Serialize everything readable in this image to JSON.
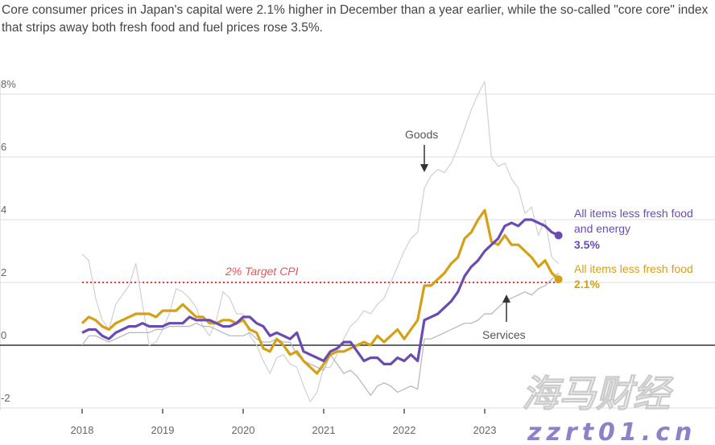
{
  "chart_data": {
    "type": "line",
    "title": "",
    "subtitle": "Core consumer prices in Japan's capital were 2.1% higher in December than a year earlier, while the so-called \"core core\" index that strips away both fresh food and fuel prices rose 3.5%.",
    "xlabel": "",
    "ylabel": "",
    "ylim": [
      -2,
      8
    ],
    "yticks": [
      "8%",
      "6",
      "4",
      "2",
      "0",
      "-2"
    ],
    "xticks": [
      "2018",
      "2019",
      "2020",
      "2021",
      "2022",
      "2023"
    ],
    "x_start": "2018-01",
    "x_end": "2023-12",
    "frequency": "monthly",
    "grid": true,
    "reference_line": {
      "value": 2,
      "label": "2% Target CPI",
      "color": "#e8383d"
    },
    "series": [
      {
        "name": "Goods",
        "color": "#d0d0d0",
        "values": [
          2.9,
          2.7,
          1.5,
          0.8,
          0.5,
          1.3,
          1.6,
          1.9,
          2.6,
          1.3,
          0.0,
          0.1,
          0.5,
          1.0,
          1.8,
          1.7,
          1.5,
          1.2,
          0.6,
          0.3,
          0.8,
          1.7,
          1.5,
          1.0,
          1.0,
          0.3,
          0.0,
          -0.5,
          -0.9,
          -0.4,
          -0.3,
          -0.6,
          -0.7,
          -1.3,
          -1.8,
          -1.5,
          -0.7,
          -0.7,
          -0.3,
          0.2,
          0.6,
          0.8,
          1.1,
          1.0,
          1.3,
          1.5,
          2.0,
          2.5,
          3.0,
          3.4,
          3.6,
          5.0,
          5.4,
          5.6,
          5.5,
          5.8,
          6.3,
          6.9,
          7.5,
          8.0,
          8.4,
          6.0,
          5.7,
          5.8,
          5.3,
          5.0,
          4.2,
          4.4,
          3.5,
          4.0,
          2.8,
          2.6
        ]
      },
      {
        "name": "Services",
        "color": "#b5b5b5",
        "values": [
          0.0,
          0.3,
          0.3,
          0.2,
          0.1,
          0.2,
          0.3,
          0.4,
          0.4,
          0.4,
          0.4,
          0.5,
          0.5,
          0.6,
          0.6,
          0.6,
          0.6,
          0.7,
          0.6,
          0.6,
          0.5,
          0.4,
          0.3,
          0.3,
          0.3,
          0.4,
          0.2,
          0.1,
          0.1,
          0.2,
          0.1,
          0.1,
          -0.3,
          -0.5,
          -0.6,
          -0.7,
          -0.8,
          -0.3,
          -0.6,
          -0.9,
          -0.8,
          -1.0,
          -1.3,
          -1.6,
          -1.3,
          -1.2,
          -1.3,
          -1.5,
          -1.4,
          -1.3,
          -1.4,
          0.2,
          0.2,
          0.3,
          0.4,
          0.5,
          0.6,
          0.7,
          0.7,
          0.8,
          1.0,
          1.0,
          1.2,
          1.4,
          1.5,
          1.6,
          1.7,
          1.6,
          1.8,
          1.9,
          2.1,
          2.3
        ]
      },
      {
        "name": "All items less fresh food",
        "color": "#d4a017",
        "last_label": "2.1%",
        "values": [
          0.7,
          0.9,
          0.8,
          0.6,
          0.5,
          0.7,
          0.8,
          0.9,
          1.0,
          1.0,
          1.0,
          0.9,
          1.1,
          1.1,
          1.1,
          1.3,
          1.1,
          0.9,
          0.9,
          0.7,
          0.7,
          0.8,
          0.8,
          0.7,
          0.8,
          0.5,
          0.4,
          -0.1,
          -0.2,
          0.2,
          0.0,
          -0.3,
          -0.2,
          -0.5,
          -0.7,
          -0.9,
          -0.6,
          -0.3,
          -0.2,
          -0.2,
          -0.1,
          0.0,
          0.1,
          0.0,
          0.3,
          0.1,
          0.3,
          0.5,
          0.2,
          0.5,
          0.8,
          1.9,
          1.9,
          2.1,
          2.3,
          2.6,
          2.8,
          3.4,
          3.6,
          4.0,
          4.3,
          3.3,
          3.2,
          3.5,
          3.2,
          3.2,
          3.0,
          2.8,
          2.5,
          2.7,
          2.3,
          2.1
        ]
      },
      {
        "name": "All items less fresh food and energy",
        "color": "#6a4bb0",
        "last_label": "3.5%",
        "values": [
          0.4,
          0.5,
          0.5,
          0.3,
          0.2,
          0.4,
          0.5,
          0.6,
          0.6,
          0.7,
          0.6,
          0.6,
          0.6,
          0.7,
          0.7,
          0.7,
          0.9,
          0.8,
          0.8,
          0.8,
          0.7,
          0.6,
          0.6,
          0.7,
          0.9,
          0.9,
          0.7,
          0.6,
          0.3,
          0.4,
          0.3,
          0.2,
          0.4,
          -0.2,
          -0.3,
          -0.4,
          -0.5,
          -0.2,
          -0.1,
          0.1,
          0.1,
          -0.2,
          -0.5,
          -0.4,
          -0.4,
          -0.6,
          -0.6,
          -0.4,
          -0.5,
          -0.3,
          -0.5,
          0.8,
          0.9,
          1.0,
          1.2,
          1.4,
          1.7,
          2.2,
          2.5,
          2.7,
          3.0,
          3.2,
          3.4,
          3.8,
          3.9,
          3.8,
          4.0,
          4.0,
          3.9,
          3.8,
          3.6,
          3.5
        ]
      }
    ],
    "annotations": {
      "goods": "Goods",
      "services": "Services",
      "core_core_line1": "All items less fresh food",
      "core_core_line2": "and energy",
      "core_core_value": "3.5%",
      "core_line1": "All items less fresh food",
      "core_value": "2.1%"
    }
  },
  "watermark": {
    "chinese": "海马财经",
    "url": "zzrt01.cn"
  }
}
